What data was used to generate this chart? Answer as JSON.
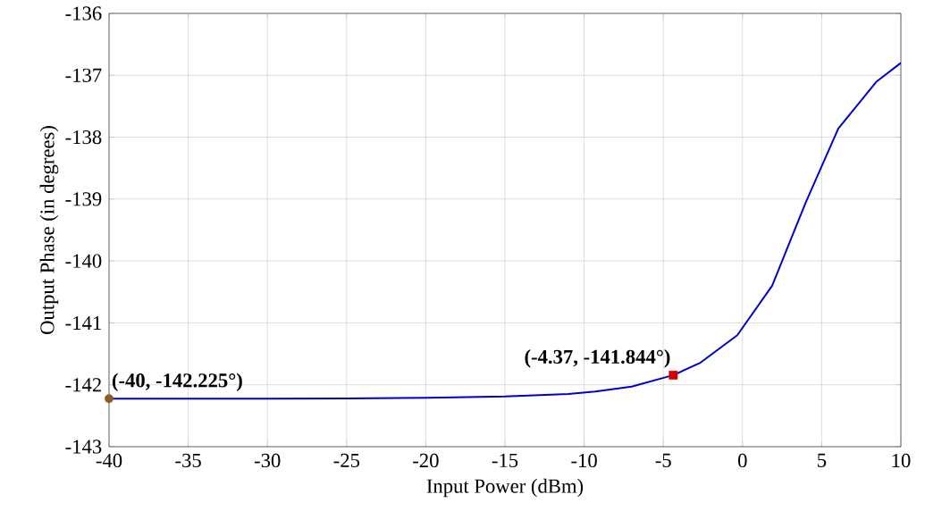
{
  "chart_data": {
    "type": "line",
    "xlabel": "Input Power (dBm)",
    "ylabel": "Output Phase (in degrees)",
    "xlim": [
      -40,
      10
    ],
    "ylim": [
      -143,
      -136
    ],
    "xticks": [
      -40,
      -35,
      -30,
      -25,
      -20,
      -15,
      -10,
      -5,
      0,
      5,
      10
    ],
    "yticks": [
      -143,
      -142,
      -141,
      -140,
      -139,
      -138,
      -137,
      -136
    ],
    "grid": true,
    "marker": "none",
    "series": [
      {
        "color": "#0000cc",
        "x": [
          -40,
          -35,
          -30,
          -25,
          -20,
          -15,
          -11,
          -9.3,
          -7,
          -4.37,
          -2.7,
          -0.33,
          1.87,
          4,
          6.05,
          8.47,
          10
        ],
        "values": [
          -142.225,
          -142.225,
          -142.224,
          -142.22,
          -142.21,
          -142.19,
          -142.15,
          -142.11,
          -142.03,
          -141.844,
          -141.65,
          -141.2,
          -140.4,
          -139.05,
          -137.86,
          -137.1,
          -136.8
        ]
      },
      {
        "type": "scatter",
        "marker": "circle",
        "color": "#8c5a28",
        "x": [
          -40
        ],
        "values": [
          -142.225
        ]
      },
      {
        "type": "scatter",
        "marker": "square",
        "color": "#d40000",
        "x": [
          -4.37
        ],
        "values": [
          -141.844
        ]
      }
    ],
    "annotations": [
      {
        "text": "(-40, -142.225°)",
        "x": -40,
        "y": -142.225
      },
      {
        "text": "(-4.37, -141.844°)",
        "x": -4.37,
        "y": -141.844
      }
    ]
  }
}
